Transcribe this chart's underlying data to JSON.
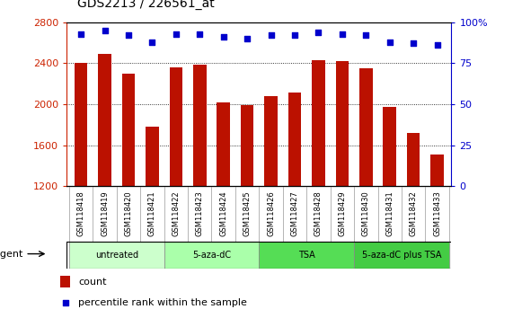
{
  "title": "GDS2213 / 226561_at",
  "samples": [
    "GSM118418",
    "GSM118419",
    "GSM118420",
    "GSM118421",
    "GSM118422",
    "GSM118423",
    "GSM118424",
    "GSM118425",
    "GSM118426",
    "GSM118427",
    "GSM118428",
    "GSM118429",
    "GSM118430",
    "GSM118431",
    "GSM118432",
    "GSM118433"
  ],
  "counts": [
    2400,
    2490,
    2300,
    1780,
    2360,
    2385,
    2020,
    1995,
    2080,
    2110,
    2430,
    2420,
    2350,
    1970,
    1720,
    1510
  ],
  "percentiles": [
    93,
    95,
    92,
    88,
    93,
    93,
    91,
    90,
    92,
    92,
    94,
    93,
    92,
    88,
    87,
    86
  ],
  "bar_color": "#bb1100",
  "dot_color": "#0000cc",
  "ylim_left": [
    1200,
    2800
  ],
  "ylim_right": [
    0,
    100
  ],
  "yticks_left": [
    1200,
    1600,
    2000,
    2400,
    2800
  ],
  "yticks_right": [
    0,
    25,
    50,
    75,
    100
  ],
  "ytick_right_labels": [
    "0",
    "25",
    "50",
    "75",
    "100%"
  ],
  "groups": [
    {
      "label": "untreated",
      "start": 0,
      "end": 3,
      "color": "#ccffcc"
    },
    {
      "label": "5-aza-dC",
      "start": 4,
      "end": 7,
      "color": "#aaffaa"
    },
    {
      "label": "TSA",
      "start": 8,
      "end": 11,
      "color": "#55dd55"
    },
    {
      "label": "5-aza-dC plus TSA",
      "start": 12,
      "end": 15,
      "color": "#44cc44"
    }
  ],
  "legend_count_label": "count",
  "legend_pct_label": "percentile rank within the sample",
  "agent_label": "agent",
  "background_color": "#ffffff",
  "tick_left_color": "#cc2200",
  "tick_right_color": "#0000cc",
  "bar_width": 0.55
}
